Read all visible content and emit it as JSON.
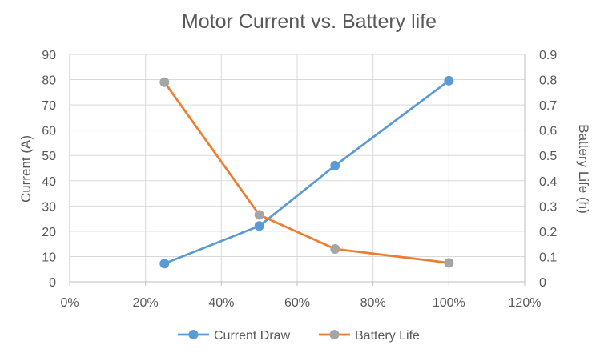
{
  "chart_data": {
    "type": "line",
    "title": "Motor Current vs. Battery life",
    "xlabel": "",
    "ylabel": "Current (A)",
    "y2label": "Battery Life (h)",
    "xlim": [
      0,
      1.2
    ],
    "ylim": [
      0,
      90
    ],
    "y2lim": [
      0,
      0.9
    ],
    "x_ticks": [
      "0%",
      "20%",
      "40%",
      "60%",
      "80%",
      "100%",
      "120%"
    ],
    "y_ticks": [
      "0",
      "10",
      "20",
      "30",
      "40",
      "50",
      "60",
      "70",
      "80",
      "90"
    ],
    "y2_ticks": [
      "0",
      "0.1",
      "0.2",
      "0.3",
      "0.4",
      "0.5",
      "0.6",
      "0.7",
      "0.8",
      "0.9"
    ],
    "grid": true,
    "legend_position": "bottom",
    "series": [
      {
        "name": "Current Draw",
        "axis": "left",
        "color": "#5b9bd5",
        "marker_color": "#5b9bd5",
        "x": [
          0.25,
          0.5,
          0.7,
          1.0
        ],
        "y": [
          7.2,
          22.1,
          46.0,
          79.6
        ]
      },
      {
        "name": "Battery Life",
        "axis": "right",
        "color": "#ed7d31",
        "marker_color": "#a5a5a5",
        "x": [
          0.25,
          0.5,
          0.7,
          1.0
        ],
        "y": [
          0.79,
          0.265,
          0.13,
          0.075
        ]
      }
    ]
  }
}
